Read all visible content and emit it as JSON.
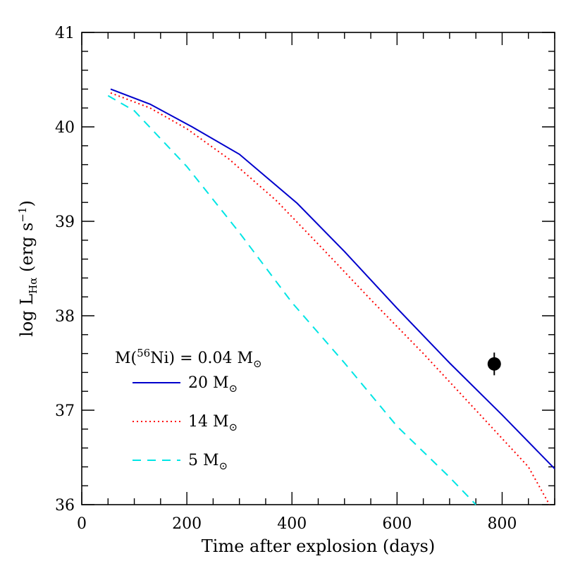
{
  "chart_data": {
    "type": "line",
    "xlabel": "Time after explosion (days)",
    "ylabel": {
      "pre": "log L",
      "sub": "Hα",
      "mid": " (erg s",
      "sup": "−1",
      "post": ")"
    },
    "xlim": [
      0,
      900
    ],
    "ylim": [
      36,
      41
    ],
    "xticks": [
      0,
      200,
      400,
      600,
      800
    ],
    "yticks": [
      36,
      37,
      38,
      39,
      40,
      41
    ],
    "legend": {
      "title": {
        "pre": "M(",
        "sup": "56",
        "mid": "Ni) = 0.04 M",
        "sym": "⊙"
      },
      "placement": "lower-left"
    },
    "series": [
      {
        "name": "20 M⊙",
        "label_text": "20 M",
        "sun_symbol": "⊙",
        "color": "#0000cc",
        "style": "solid",
        "x": [
          55,
          130,
          210,
          300,
          410,
          500,
          600,
          700,
          800,
          900
        ],
        "y": [
          40.4,
          40.24,
          40.0,
          39.71,
          39.19,
          38.68,
          38.08,
          37.5,
          36.95,
          36.38
        ]
      },
      {
        "name": "14 M⊙",
        "label_text": "14 M",
        "sun_symbol": "⊙",
        "color": "#ff0000",
        "style": "dotted",
        "x": [
          55,
          130,
          200,
          280,
          370,
          460,
          550,
          650,
          750,
          850,
          890
        ],
        "y": [
          40.36,
          40.2,
          39.98,
          39.66,
          39.22,
          38.7,
          38.17,
          37.6,
          37.0,
          36.4,
          36.0
        ]
      },
      {
        "name": "5 M⊙",
        "label_text": "5 M",
        "sun_symbol": "⊙",
        "color": "#00e5e5",
        "style": "dashed",
        "x": [
          50,
          100,
          200,
          300,
          400,
          500,
          600,
          700,
          750
        ],
        "y": [
          40.33,
          40.17,
          39.58,
          38.88,
          38.14,
          37.5,
          36.83,
          36.29,
          36.0
        ]
      }
    ],
    "points": [
      {
        "name": "observation",
        "x": 785,
        "y": 37.49,
        "yerr": 0.12,
        "color": "#000000"
      }
    ]
  }
}
